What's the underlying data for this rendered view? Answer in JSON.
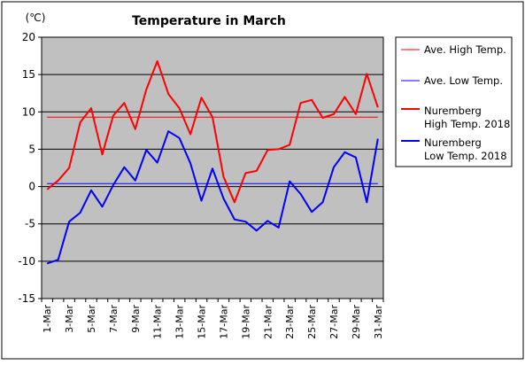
{
  "chart_data": {
    "type": "line",
    "title": "Temperature in March",
    "ylabel": "(℃)",
    "xlabel": "",
    "ylim": [
      -15,
      20
    ],
    "yticks": [
      20,
      15,
      10,
      5,
      0,
      -5,
      -10,
      -15
    ],
    "grid": true,
    "legend_position": "right",
    "categories": [
      "1-Mar",
      "2-Mar",
      "3-Mar",
      "4-Mar",
      "5-Mar",
      "6-Mar",
      "7-Mar",
      "8-Mar",
      "9-Mar",
      "10-Mar",
      "11-Mar",
      "12-Mar",
      "13-Mar",
      "14-Mar",
      "15-Mar",
      "16-Mar",
      "17-Mar",
      "18-Mar",
      "19-Mar",
      "20-Mar",
      "21-Mar",
      "22-Mar",
      "23-Mar",
      "24-Mar",
      "25-Mar",
      "26-Mar",
      "27-Mar",
      "28-Mar",
      "29-Mar",
      "30-Mar",
      "31-Mar"
    ],
    "tick_labels": [
      "1-Mar",
      "3-Mar",
      "5-Mar",
      "7-Mar",
      "9-Mar",
      "11-Mar",
      "13-Mar",
      "15-Mar",
      "17-Mar",
      "19-Mar",
      "21-Mar",
      "23-Mar",
      "25-Mar",
      "27-Mar",
      "29-Mar",
      "31-Mar"
    ],
    "series": [
      {
        "name": "Ave. High Temp.",
        "color": "#ff0000",
        "style": "thin",
        "values": [
          9.3,
          9.3,
          9.3,
          9.3,
          9.3,
          9.3,
          9.3,
          9.3,
          9.3,
          9.3,
          9.3,
          9.3,
          9.3,
          9.3,
          9.3,
          9.3,
          9.3,
          9.3,
          9.3,
          9.3,
          9.3,
          9.3,
          9.3,
          9.3,
          9.3,
          9.3,
          9.3,
          9.3,
          9.3,
          9.3,
          9.3
        ]
      },
      {
        "name": "Ave. Low Temp.",
        "color": "#0000ff",
        "style": "thin",
        "values": [
          0.4,
          0.4,
          0.4,
          0.4,
          0.4,
          0.4,
          0.4,
          0.4,
          0.4,
          0.4,
          0.4,
          0.4,
          0.4,
          0.4,
          0.4,
          0.4,
          0.4,
          0.4,
          0.4,
          0.4,
          0.4,
          0.4,
          0.4,
          0.4,
          0.4,
          0.4,
          0.4,
          0.4,
          0.4,
          0.4,
          0.4
        ]
      },
      {
        "name": "Nuremberg High Temp. 2018",
        "legend_lines": [
          "Nuremberg",
          "High Temp. 2018"
        ],
        "color": "#ff0000",
        "style": "thick",
        "values": [
          -0.4,
          0.8,
          2.5,
          8.6,
          10.5,
          4.3,
          9.5,
          11.2,
          7.7,
          13.0,
          16.8,
          12.4,
          10.5,
          7.0,
          11.9,
          9.3,
          1.3,
          -2.1,
          1.8,
          2.1,
          4.9,
          5.0,
          5.6,
          11.2,
          11.6,
          9.2,
          9.7,
          12.0,
          9.7,
          15.1,
          10.6
        ]
      },
      {
        "name": "Nuremberg Low Temp. 2018",
        "legend_lines": [
          "Nuremberg",
          "Low Temp. 2018"
        ],
        "color": "#0000ff",
        "style": "thick",
        "values": [
          -10.3,
          -9.8,
          -4.7,
          -3.5,
          -0.5,
          -2.7,
          0.2,
          2.6,
          0.8,
          4.9,
          3.2,
          7.4,
          6.5,
          3.1,
          -1.9,
          2.4,
          -1.6,
          -4.4,
          -4.7,
          -5.9,
          -4.6,
          -5.5,
          0.7,
          -1.0,
          -3.4,
          -2.1,
          2.6,
          4.6,
          3.9,
          -2.1,
          6.4
        ]
      }
    ]
  }
}
